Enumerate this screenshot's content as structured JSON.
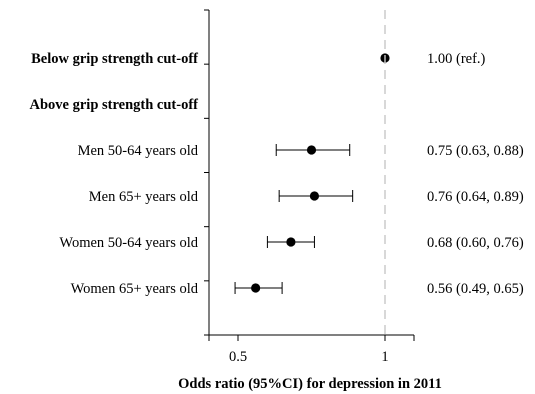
{
  "chart_data": {
    "type": "forest",
    "xlabel": "Odds ratio (95%CI) for depression in 2011",
    "xlim": [
      0.42,
      1.1
    ],
    "xticks": [
      0.5,
      1
    ],
    "tick_labels": [
      "0.5",
      "1"
    ],
    "reference_line": 1,
    "grid": false,
    "rows": [
      {
        "label": "Below grip strength cut-off",
        "bold": true,
        "or": 1.0,
        "lo": null,
        "hi": null,
        "ci_text": "1.00 (ref.)"
      },
      {
        "label": "Above grip strength cut-off",
        "bold": true,
        "or": null,
        "lo": null,
        "hi": null,
        "ci_text": ""
      },
      {
        "label": "Men 50-64 years old",
        "bold": false,
        "or": 0.75,
        "lo": 0.63,
        "hi": 0.88,
        "ci_text": "0.75 (0.63, 0.88)"
      },
      {
        "label": "Men 65+ years old",
        "bold": false,
        "or": 0.76,
        "lo": 0.64,
        "hi": 0.89,
        "ci_text": "0.76 (0.64, 0.89)"
      },
      {
        "label": "Women 50-64 years old",
        "bold": false,
        "or": 0.68,
        "lo": 0.6,
        "hi": 0.76,
        "ci_text": "0.68 (0.60, 0.76)"
      },
      {
        "label": "Women 65+ years old",
        "bold": false,
        "or": 0.56,
        "lo": 0.49,
        "hi": 0.65,
        "ci_text": "0.56 (0.49, 0.65)"
      }
    ]
  }
}
